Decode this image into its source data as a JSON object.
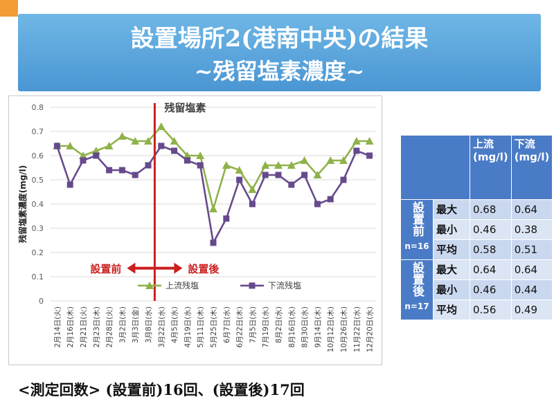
{
  "slide": {
    "title_line1": "設置場所2(港南中央)の結果",
    "title_line2": "~残留塩素濃度~",
    "footer": "<測定回数> (設置前)16回、(設置後)17回"
  },
  "chart_data": {
    "type": "line",
    "title": "残留塩素",
    "ylabel": "残留塩素濃度(mg/l)",
    "ylim": [
      0,
      0.8
    ],
    "yticks": [
      "0",
      "0.1",
      "0.2",
      "0.3",
      "0.4",
      "0.5",
      "0.6",
      "0.7",
      "0.8"
    ],
    "categories": [
      "2月14日(火)",
      "2月16日(木)",
      "2月21日(火)",
      "2月23日(木)",
      "2月28日(火)",
      "3月2日(木)",
      "3月3日(金)",
      "3月8日(水)",
      "3月22日(水)",
      "4月5日(水)",
      "4月19日(水)",
      "5月11日(木)",
      "5月25日(木)",
      "6月7日(水)",
      "6月22日(木)",
      "7月5日(水)",
      "7月19日(水)",
      "8月2日(水)",
      "8月16日(水)",
      "8月30日(水)",
      "9月14日(木)",
      "10月12日(木)",
      "10月26日(木)",
      "11月22日(水)",
      "12月20日(水)"
    ],
    "series": [
      {
        "name": "上流残塩",
        "color": "#8fb24a",
        "marker": "triangle",
        "values": [
          0.64,
          0.64,
          0.6,
          0.62,
          0.64,
          0.68,
          0.66,
          0.66,
          0.72,
          0.66,
          0.6,
          0.6,
          0.38,
          0.56,
          0.54,
          0.46,
          0.56,
          0.56,
          0.56,
          0.58,
          0.52,
          0.58,
          0.58,
          0.66,
          0.66
        ]
      },
      {
        "name": "下流残塩",
        "color": "#664a8c",
        "marker": "square",
        "values": [
          0.64,
          0.48,
          0.58,
          0.6,
          0.54,
          0.54,
          0.52,
          0.56,
          0.64,
          0.62,
          0.58,
          0.56,
          0.24,
          0.34,
          0.5,
          0.4,
          0.52,
          0.52,
          0.48,
          0.52,
          0.4,
          0.42,
          0.5,
          0.62,
          0.6
        ]
      }
    ],
    "divider_index": 8,
    "annotation_before": "設置前",
    "annotation_after": "設置後",
    "divider_color": "#cc1f1f",
    "grid": true,
    "legend_position": "bottom-inside"
  },
  "summary_table": {
    "col_headers": [
      "上流(mg/l)",
      "下流(mg/l)"
    ],
    "groups": [
      {
        "name": "設置前",
        "n": "n=16",
        "rows": [
          {
            "label": "最大",
            "up": "0.68",
            "down": "0.64"
          },
          {
            "label": "最小",
            "up": "0.46",
            "down": "0.38"
          },
          {
            "label": "平均",
            "up": "0.58",
            "down": "0.51"
          }
        ]
      },
      {
        "name": "設置後",
        "n": "n=17",
        "rows": [
          {
            "label": "最大",
            "up": "0.64",
            "down": "0.64"
          },
          {
            "label": "最小",
            "up": "0.46",
            "down": "0.44"
          },
          {
            "label": "平均",
            "up": "0.56",
            "down": "0.49"
          }
        ]
      }
    ]
  }
}
